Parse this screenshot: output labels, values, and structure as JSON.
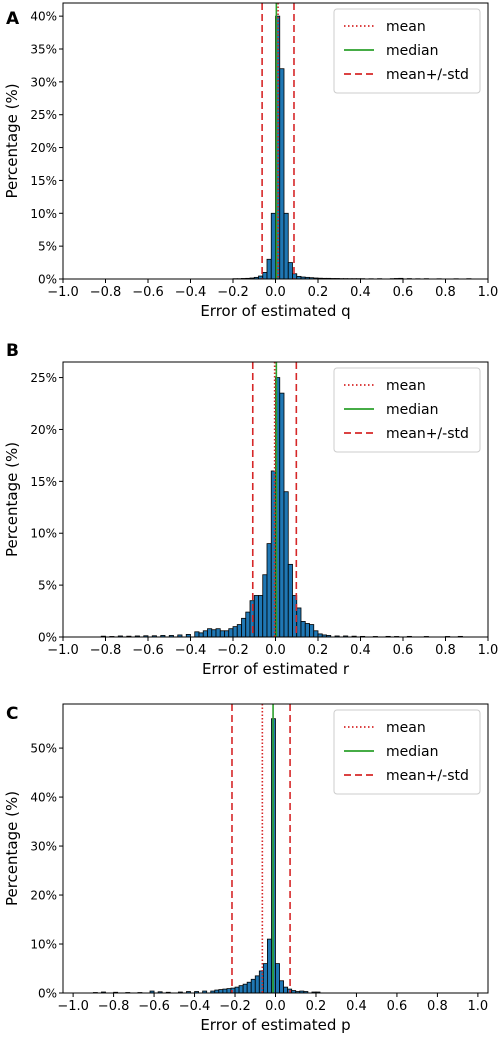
{
  "chart_data": [
    {
      "panel_label": "A",
      "type": "bar",
      "title": "",
      "xlabel": "Error of estimated q",
      "ylabel": "Percentage (%)",
      "xlim": [
        -1.0,
        1.0
      ],
      "ylim": [
        0,
        42
      ],
      "xticks": [
        -1.0,
        -0.8,
        -0.6,
        -0.4,
        -0.2,
        0.0,
        0.2,
        0.4,
        0.6,
        0.8,
        1.0
      ],
      "xtick_labels": [
        "−1.0",
        "−0.8",
        "−0.6",
        "−0.4",
        "−0.2",
        "0.0",
        "0.2",
        "0.4",
        "0.6",
        "0.8",
        "1.0"
      ],
      "yticks": [
        0,
        5,
        10,
        15,
        20,
        25,
        30,
        35,
        40
      ],
      "ytick_labels": [
        "0%",
        "5%",
        "10%",
        "15%",
        "20%",
        "25%",
        "30%",
        "35%",
        "40%"
      ],
      "bin_width": 0.02,
      "bins": [
        [
          -0.2,
          0.05
        ],
        [
          -0.18,
          0.05
        ],
        [
          -0.16,
          0.08
        ],
        [
          -0.14,
          0.1
        ],
        [
          -0.12,
          0.15
        ],
        [
          -0.1,
          0.25
        ],
        [
          -0.08,
          0.45
        ],
        [
          -0.06,
          1.0
        ],
        [
          -0.04,
          3.0
        ],
        [
          -0.02,
          10.0
        ],
        [
          0.0,
          40.0
        ],
        [
          0.02,
          32.0
        ],
        [
          0.04,
          10.0
        ],
        [
          0.06,
          2.5
        ],
        [
          0.08,
          0.8
        ],
        [
          0.1,
          0.4
        ],
        [
          0.12,
          0.3
        ],
        [
          0.14,
          0.25
        ],
        [
          0.16,
          0.2
        ],
        [
          0.18,
          0.15
        ],
        [
          0.2,
          0.12
        ],
        [
          0.22,
          0.1
        ],
        [
          0.24,
          0.1
        ],
        [
          0.26,
          0.08
        ],
        [
          0.28,
          0.08
        ],
        [
          0.3,
          0.06
        ],
        [
          0.32,
          0.06
        ],
        [
          0.34,
          0.05
        ],
        [
          0.36,
          0.05
        ],
        [
          0.38,
          0.05
        ],
        [
          0.4,
          0.05
        ],
        [
          0.44,
          0.04
        ],
        [
          0.48,
          0.05
        ],
        [
          0.54,
          0.05
        ],
        [
          0.56,
          0.08
        ],
        [
          0.58,
          0.1
        ],
        [
          0.62,
          0.06
        ],
        [
          0.66,
          0.04
        ],
        [
          0.7,
          0.05
        ],
        [
          0.76,
          0.04
        ],
        [
          0.84,
          0.04
        ],
        [
          0.9,
          0.05
        ]
      ],
      "lines": {
        "mean": 0.012,
        "median": 0.004,
        "std_low": -0.063,
        "std_high": 0.087
      },
      "legend": {
        "placement": "upper right",
        "entries": [
          "mean",
          "median",
          "mean+/-std"
        ]
      },
      "grid": false
    },
    {
      "panel_label": "B",
      "type": "bar",
      "title": "",
      "xlabel": "Error of estimated r",
      "ylabel": "Percentage (%)",
      "xlim": [
        -1.0,
        1.0
      ],
      "ylim": [
        0,
        26.5
      ],
      "xticks": [
        -1.0,
        -0.8,
        -0.6,
        -0.4,
        -0.2,
        0.0,
        0.2,
        0.4,
        0.6,
        0.8,
        1.0
      ],
      "xtick_labels": [
        "−1.0",
        "−0.8",
        "−0.6",
        "−0.4",
        "−0.2",
        "0.0",
        "0.2",
        "0.4",
        "0.6",
        "0.8",
        "1.0"
      ],
      "yticks": [
        0,
        5,
        10,
        15,
        20,
        25
      ],
      "ytick_labels": [
        "0%",
        "5%",
        "10%",
        "15%",
        "20%",
        "25%"
      ],
      "bin_width": 0.02,
      "bins": [
        [
          -0.82,
          0.08
        ],
        [
          -0.78,
          0.05
        ],
        [
          -0.74,
          0.1
        ],
        [
          -0.7,
          0.08
        ],
        [
          -0.66,
          0.1
        ],
        [
          -0.62,
          0.12
        ],
        [
          -0.58,
          0.12
        ],
        [
          -0.54,
          0.15
        ],
        [
          -0.5,
          0.15
        ],
        [
          -0.46,
          0.2
        ],
        [
          -0.42,
          0.25
        ],
        [
          -0.38,
          0.5
        ],
        [
          -0.36,
          0.4
        ],
        [
          -0.34,
          0.6
        ],
        [
          -0.32,
          0.8
        ],
        [
          -0.3,
          0.7
        ],
        [
          -0.28,
          0.8
        ],
        [
          -0.26,
          0.6
        ],
        [
          -0.24,
          0.6
        ],
        [
          -0.22,
          0.8
        ],
        [
          -0.2,
          1.0
        ],
        [
          -0.18,
          1.2
        ],
        [
          -0.16,
          1.8
        ],
        [
          -0.14,
          2.4
        ],
        [
          -0.12,
          3.5
        ],
        [
          -0.1,
          4.0
        ],
        [
          -0.08,
          4.0
        ],
        [
          -0.06,
          6.0
        ],
        [
          -0.04,
          9.0
        ],
        [
          -0.02,
          16.0
        ],
        [
          0.0,
          25.0
        ],
        [
          0.02,
          23.5
        ],
        [
          0.04,
          14.0
        ],
        [
          0.06,
          7.0
        ],
        [
          0.08,
          4.0
        ],
        [
          0.1,
          2.8
        ],
        [
          0.12,
          1.5
        ],
        [
          0.14,
          1.3
        ],
        [
          0.16,
          1.2
        ],
        [
          0.18,
          0.6
        ],
        [
          0.2,
          0.3
        ],
        [
          0.22,
          0.2
        ],
        [
          0.24,
          0.15
        ],
        [
          0.28,
          0.1
        ],
        [
          0.32,
          0.1
        ],
        [
          0.36,
          0.08
        ],
        [
          0.4,
          0.06
        ],
        [
          0.46,
          0.05
        ],
        [
          0.52,
          0.06
        ],
        [
          0.56,
          0.05
        ],
        [
          0.62,
          0.06
        ],
        [
          0.7,
          0.05
        ],
        [
          0.8,
          0.05
        ],
        [
          0.86,
          0.06
        ]
      ],
      "lines": {
        "mean": -0.004,
        "median": 0.004,
        "std_low": -0.107,
        "std_high": 0.098
      },
      "legend": {
        "placement": "upper right",
        "entries": [
          "mean",
          "median",
          "mean+/-std"
        ]
      },
      "grid": false
    },
    {
      "panel_label": "C",
      "type": "bar",
      "title": "",
      "xlabel": "Error of estimated p",
      "ylabel": "Percentage (%)",
      "xlim": [
        -1.05,
        1.05
      ],
      "ylim": [
        0,
        59
      ],
      "xticks": [
        -1.0,
        -0.8,
        -0.6,
        -0.4,
        -0.2,
        0.0,
        0.2,
        0.4,
        0.6,
        0.8,
        1.0
      ],
      "xtick_labels": [
        "−1.0",
        "−0.8",
        "−0.6",
        "−0.4",
        "−0.2",
        "0.0",
        "0.2",
        "0.4",
        "0.6",
        "0.8",
        "1.0"
      ],
      "yticks": [
        0,
        10,
        20,
        30,
        40,
        50
      ],
      "ytick_labels": [
        "0%",
        "10%",
        "20%",
        "30%",
        "40%",
        "50%"
      ],
      "bin_width": 0.02,
      "bins": [
        [
          -0.9,
          0.1
        ],
        [
          -0.86,
          0.2
        ],
        [
          -0.8,
          0.15
        ],
        [
          -0.74,
          0.1
        ],
        [
          -0.68,
          0.1
        ],
        [
          -0.62,
          0.4
        ],
        [
          -0.58,
          0.25
        ],
        [
          -0.54,
          0.15
        ],
        [
          -0.48,
          0.2
        ],
        [
          -0.44,
          0.3
        ],
        [
          -0.4,
          0.3
        ],
        [
          -0.36,
          0.4
        ],
        [
          -0.32,
          0.4
        ],
        [
          -0.3,
          0.6
        ],
        [
          -0.28,
          0.7
        ],
        [
          -0.26,
          0.8
        ],
        [
          -0.24,
          0.9
        ],
        [
          -0.22,
          1.0
        ],
        [
          -0.2,
          1.2
        ],
        [
          -0.18,
          1.5
        ],
        [
          -0.16,
          1.8
        ],
        [
          -0.14,
          2.2
        ],
        [
          -0.12,
          2.8
        ],
        [
          -0.1,
          3.5
        ],
        [
          -0.08,
          4.5
        ],
        [
          -0.06,
          6.0
        ],
        [
          -0.04,
          11.0
        ],
        [
          -0.02,
          56.0
        ],
        [
          0.0,
          6.0
        ],
        [
          0.02,
          2.5
        ],
        [
          0.04,
          1.2
        ],
        [
          0.06,
          0.8
        ],
        [
          0.08,
          0.5
        ],
        [
          0.1,
          0.3
        ],
        [
          0.12,
          0.4
        ],
        [
          0.14,
          0.3
        ],
        [
          0.18,
          0.2
        ],
        [
          0.2,
          0.2
        ]
      ],
      "lines": {
        "mean": -0.065,
        "median": -0.012,
        "std_low": -0.215,
        "std_high": 0.072
      },
      "legend": {
        "placement": "upper right",
        "entries": [
          "mean",
          "median",
          "mean+/-std"
        ]
      },
      "grid": false
    }
  ],
  "colors": {
    "bar_fill": "#1f77b4",
    "bar_edge": "#000000",
    "mean_line": "#d62728",
    "median_line": "#2ca02c",
    "std_line": "#d62728"
  }
}
